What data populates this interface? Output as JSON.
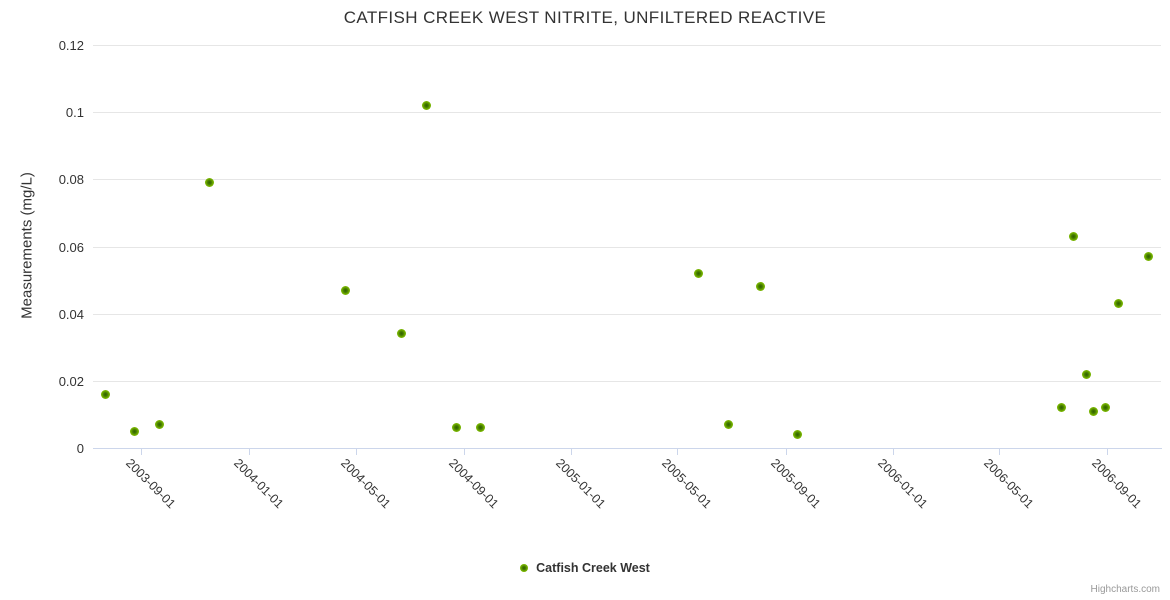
{
  "credits": "Highcharts.com",
  "colors": {
    "series_green_outer": "#7cba00",
    "series_green_inner": "#2f6000",
    "gridline": "#e6e6e6",
    "axis_line": "#ccd6eb",
    "text": "#333333",
    "credits_text": "#999999",
    "background": "#ffffff"
  },
  "chart_data": {
    "type": "scatter",
    "title": "CATFISH CREEK WEST NITRITE, UNFILTERED REACTIVE",
    "xlabel": "",
    "ylabel": "Measurements (mg/L)",
    "ylim": [
      0,
      0.12
    ],
    "yticks": [
      0,
      0.02,
      0.04,
      0.06,
      0.08,
      0.1,
      0.12
    ],
    "ytick_labels": [
      "0",
      "0.02",
      "0.04",
      "0.06",
      "0.08",
      "0.1",
      "0.12"
    ],
    "xlim": [
      "2003-07-08",
      "2006-11-01"
    ],
    "xticks": [
      "2003-09-01",
      "2004-01-01",
      "2004-05-01",
      "2004-09-01",
      "2005-01-01",
      "2005-05-01",
      "2005-09-01",
      "2006-01-01",
      "2006-05-01",
      "2006-09-01"
    ],
    "grid": true,
    "legend_position": "bottom-center",
    "series": [
      {
        "name": "Catfish Creek West",
        "color": "#7cba00",
        "points": [
          {
            "date": "2003-07-22",
            "value": 0.016
          },
          {
            "date": "2003-08-24",
            "value": 0.005
          },
          {
            "date": "2003-09-21",
            "value": 0.007
          },
          {
            "date": "2003-11-17",
            "value": 0.079
          },
          {
            "date": "2004-04-20",
            "value": 0.047
          },
          {
            "date": "2004-06-22",
            "value": 0.034
          },
          {
            "date": "2004-07-21",
            "value": 0.102
          },
          {
            "date": "2004-08-23",
            "value": 0.006
          },
          {
            "date": "2004-09-20",
            "value": 0.006
          },
          {
            "date": "2005-05-25",
            "value": 0.052
          },
          {
            "date": "2005-06-28",
            "value": 0.007
          },
          {
            "date": "2005-08-03",
            "value": 0.048
          },
          {
            "date": "2005-09-14",
            "value": 0.004
          },
          {
            "date": "2006-07-11",
            "value": 0.012
          },
          {
            "date": "2006-07-25",
            "value": 0.063
          },
          {
            "date": "2006-08-08",
            "value": 0.022
          },
          {
            "date": "2006-08-16",
            "value": 0.011
          },
          {
            "date": "2006-08-30",
            "value": 0.012
          },
          {
            "date": "2006-09-14",
            "value": 0.043
          },
          {
            "date": "2006-10-18",
            "value": 0.057
          }
        ]
      }
    ]
  }
}
